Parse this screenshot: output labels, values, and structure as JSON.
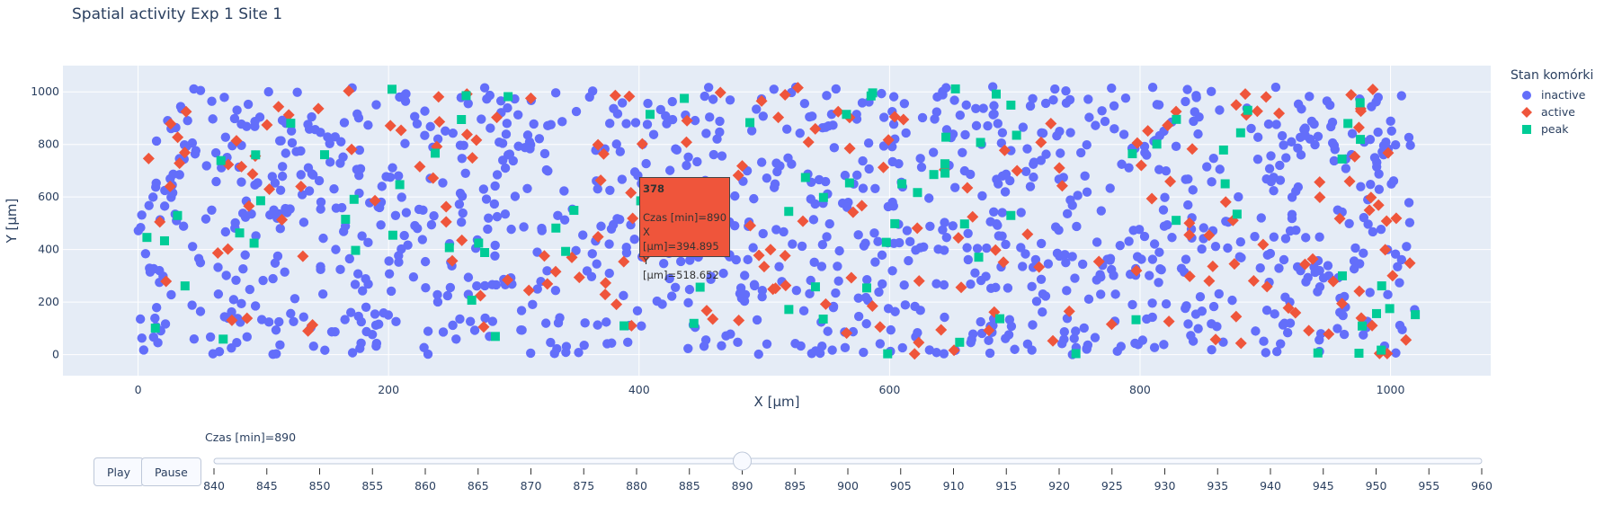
{
  "title": "Spatial activity Exp 1 Site 1",
  "chart_data": {
    "type": "scatter",
    "xlabel": "X [µm]",
    "ylabel": "Y [µm]",
    "xlim": [
      -60,
      1080
    ],
    "ylim": [
      -80,
      1100
    ],
    "x_ticks": [
      0,
      200,
      400,
      600,
      800,
      1000
    ],
    "y_ticks": [
      0,
      200,
      400,
      600,
      800,
      1000
    ],
    "grid": true,
    "legend_title": "Stan komórki",
    "legend_placement": "right-top",
    "series": [
      {
        "name": "inactive",
        "color": "#636efa",
        "marker": "circle"
      },
      {
        "name": "active",
        "color": "#ef553b",
        "marker": "diamond"
      },
      {
        "name": "peak",
        "color": "#00cc96",
        "marker": "square"
      }
    ],
    "point_counts": {
      "inactive": 1150,
      "active": 205,
      "peak": 95
    },
    "hover": {
      "id": "378",
      "lines": [
        "Czas [min]=890",
        "X [µm]=394.895",
        "Y [µm]=518.652"
      ],
      "color": "#ef553b"
    }
  },
  "controls": {
    "play_label": "Play",
    "pause_label": "Pause",
    "slider_label": "Czas [min]=890",
    "slider_value": 890,
    "slider_ticks": [
      840,
      845,
      850,
      855,
      860,
      865,
      870,
      875,
      880,
      885,
      890,
      895,
      900,
      905,
      910,
      915,
      920,
      925,
      930,
      935,
      940,
      945,
      950,
      955,
      960
    ]
  }
}
